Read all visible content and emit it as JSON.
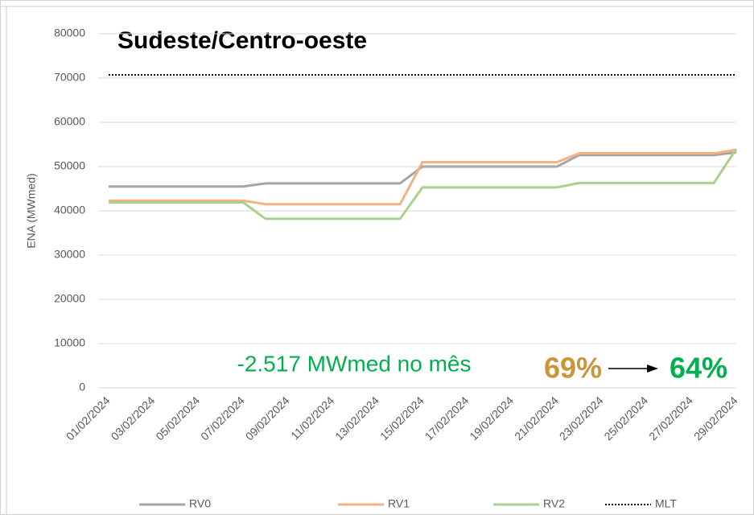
{
  "chart_data": {
    "type": "line",
    "title": "Sudeste/Centro-oeste",
    "y_label": "ENA (MWmed)",
    "categories": [
      "01/02/2024",
      null,
      "03/02/2024",
      null,
      "05/02/2024",
      null,
      "07/02/2024",
      null,
      "09/02/2024",
      null,
      "11/02/2024",
      null,
      "13/02/2024",
      null,
      "15/02/2024",
      null,
      "17/02/2024",
      null,
      "19/02/2024",
      null,
      "21/02/2024",
      null,
      "23/02/2024",
      null,
      "25/02/2024",
      null,
      "27/02/2024",
      null,
      "29/02/2024"
    ],
    "series": [
      {
        "name": "RV0",
        "color": "#a5a5a5",
        "values": [
          45500,
          45500,
          45500,
          45500,
          45500,
          45500,
          45500,
          46200,
          46200,
          46200,
          46200,
          46200,
          46200,
          46200,
          50000,
          50000,
          50000,
          50000,
          50000,
          50000,
          50000,
          52600,
          52600,
          52600,
          52600,
          52600,
          52600,
          52600,
          53200
        ]
      },
      {
        "name": "RV1",
        "color": "#f4b183",
        "values": [
          42300,
          42300,
          42300,
          42300,
          42300,
          42300,
          42300,
          41500,
          41500,
          41500,
          41500,
          41500,
          41500,
          41500,
          51000,
          51000,
          51000,
          51000,
          51000,
          51000,
          51000,
          53000,
          53000,
          53000,
          53000,
          53000,
          53000,
          53000,
          53800
        ]
      },
      {
        "name": "RV2",
        "color": "#a9d18e",
        "values": [
          41900,
          41900,
          41900,
          41900,
          41900,
          41900,
          41900,
          38200,
          38200,
          38200,
          38200,
          38200,
          38200,
          38200,
          45300,
          45300,
          45300,
          45300,
          45300,
          45300,
          45300,
          46300,
          46300,
          46300,
          46300,
          46300,
          46300,
          46300,
          54000
        ]
      },
      {
        "name": "MLT",
        "color": "#000000",
        "dotted": true,
        "values": [
          70700,
          70700,
          70700,
          70700,
          70700,
          70700,
          70700,
          70700,
          70700,
          70700,
          70700,
          70700,
          70700,
          70700,
          70700,
          70700,
          70700,
          70700,
          70700,
          70700,
          70700,
          70700,
          70700,
          70700,
          70700,
          70700,
          70700,
          70700,
          70700
        ]
      }
    ],
    "ylim": [
      0,
      80000
    ],
    "yticks": [
      0,
      10000,
      20000,
      30000,
      40000,
      50000,
      60000,
      70000,
      80000
    ],
    "grid": true,
    "legend": "bottom",
    "annotations": [
      {
        "text": "-2.517 MWmed no mês",
        "color": "#00b050"
      },
      {
        "text": "69%",
        "color": "#c9963a"
      },
      {
        "text": "64%",
        "color": "#00b050"
      }
    ]
  }
}
